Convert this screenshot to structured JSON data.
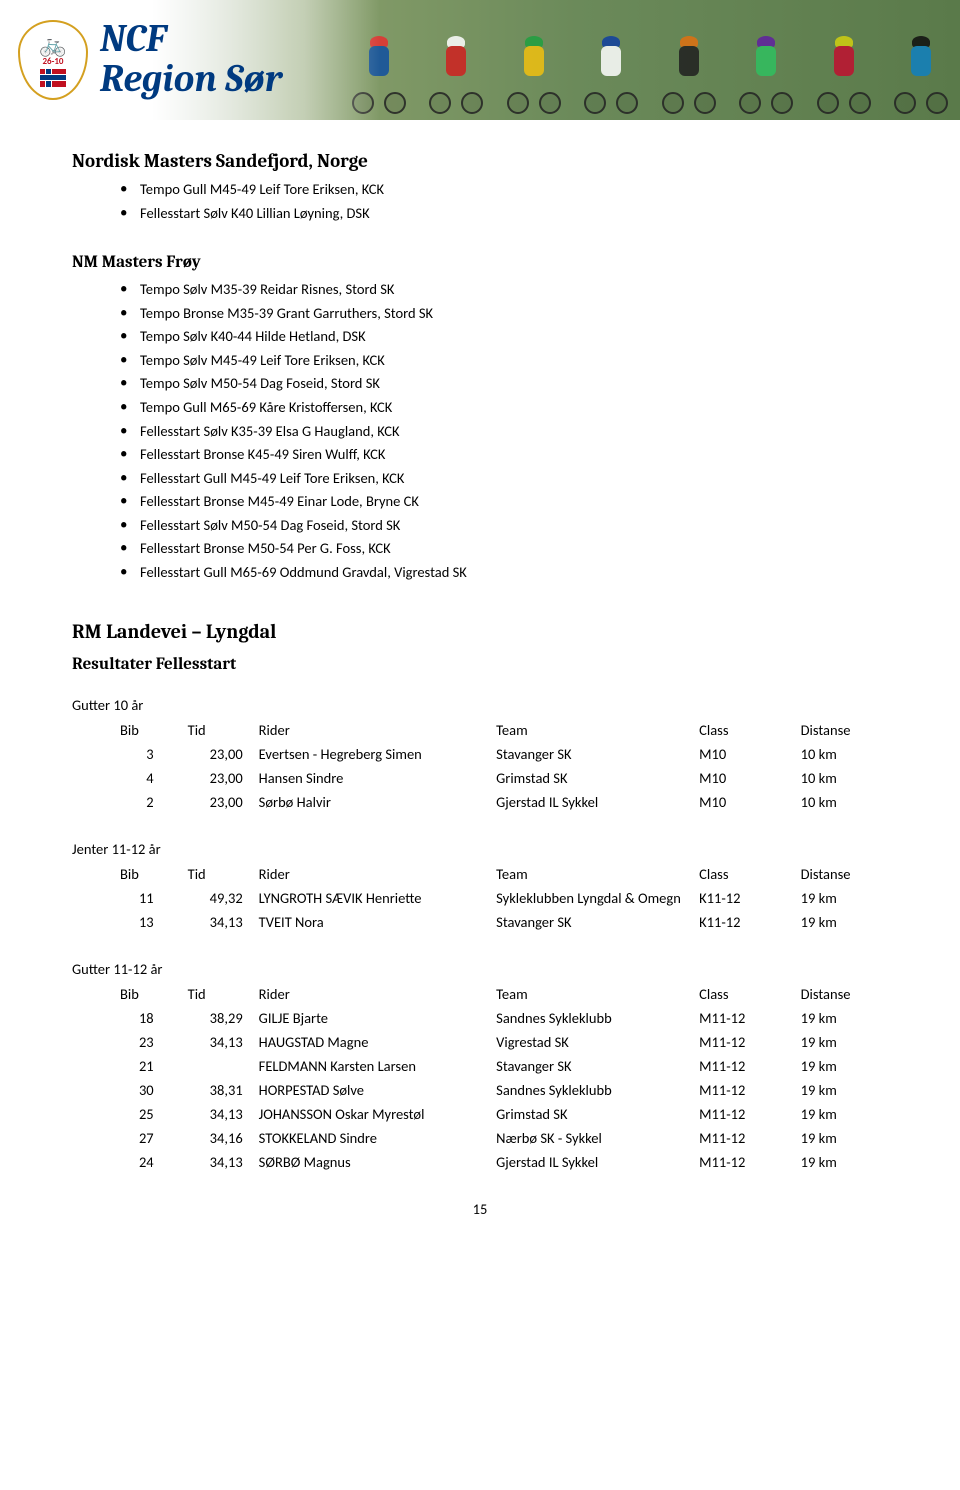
{
  "banner": {
    "title_line1": "NCF",
    "title_line2": "Region Sør",
    "logo_years": "26-10",
    "logo_ncf": "N.C.F.",
    "logo_year": "1910"
  },
  "section_nordisk": {
    "title": "Nordisk Masters Sandefjord, Norge",
    "items": [
      "Tempo Gull M45-49 Leif Tore Eriksen, KCK",
      "Fellesstart Sølv K40 Lillian Løyning, DSK"
    ]
  },
  "section_nm": {
    "title": "NM Masters Frøy",
    "items": [
      "Tempo Sølv M35-39 Reidar Risnes, Stord SK",
      "Tempo Bronse M35-39 Grant Garruthers, Stord SK",
      "Tempo Sølv K40-44 Hilde Hetland, DSK",
      "Tempo Sølv M45-49 Leif Tore Eriksen, KCK",
      "Tempo Sølv M50-54 Dag Foseid, Stord SK",
      "Tempo Gull M65-69 Kåre Kristoffersen, KCK",
      "Fellesstart Sølv K35-39 Elsa G Haugland, KCK",
      "Fellesstart Bronse K45-49 Siren Wulff, KCK",
      "Fellesstart Gull M45-49 Leif Tore Eriksen, KCK",
      "Fellesstart Bronse M45-49 Einar Lode, Bryne CK",
      "Fellesstart Sølv M50-54 Dag Foseid, Stord SK",
      "Fellesstart Bronse M50-54 Per G. Foss, KCK",
      "Fellesstart Gull M65-69 Oddmund Gravdal, Vigrestad SK"
    ]
  },
  "section_rm": {
    "title": "RM Landevei – Lyngdal",
    "subtitle": "Resultater Fellesstart"
  },
  "table_headers": {
    "bib": "Bib",
    "tid": "Tid",
    "rider": "Rider",
    "team": "Team",
    "class": "Class",
    "distanse": "Distanse"
  },
  "groups": [
    {
      "label": "Gutter 10 år",
      "rows": [
        {
          "bib": "3",
          "tid": "23,00",
          "rider": "Evertsen - Hegreberg Simen",
          "team": "Stavanger SK",
          "class": "M10",
          "dist": "10 km"
        },
        {
          "bib": "4",
          "tid": "23,00",
          "rider": "Hansen Sindre",
          "team": "Grimstad SK",
          "class": "M10",
          "dist": "10 km"
        },
        {
          "bib": "2",
          "tid": "23,00",
          "rider": "Sørbø Halvir",
          "team": "Gjerstad IL Sykkel",
          "class": "M10",
          "dist": "10 km"
        }
      ]
    },
    {
      "label": "Jenter 11-12 år",
      "rows": [
        {
          "bib": "11",
          "tid": "49,32",
          "rider": "LYNGROTH SÆVIK Henriette",
          "team": "Sykleklubben Lyngdal & Omegn",
          "class": "K11-12",
          "dist": "19 km"
        },
        {
          "bib": "13",
          "tid": "34,13",
          "rider": "TVEIT Nora",
          "team": "Stavanger SK",
          "class": "K11-12",
          "dist": "19 km"
        }
      ]
    },
    {
      "label": "Gutter 11-12 år",
      "rows": [
        {
          "bib": "18",
          "tid": "38,29",
          "rider": "GILJE Bjarte",
          "team": "Sandnes Sykleklubb",
          "class": "M11-12",
          "dist": "19 km"
        },
        {
          "bib": "23",
          "tid": "34,13",
          "rider": "HAUGSTAD Magne",
          "team": "Vigrestad SK",
          "class": "M11-12",
          "dist": "19 km"
        },
        {
          "bib": "21",
          "tid": "",
          "rider": "FELDMANN Karsten Larsen",
          "team": "Stavanger SK",
          "class": "M11-12",
          "dist": "19 km"
        },
        {
          "bib": "30",
          "tid": "38,31",
          "rider": "HORPESTAD Sølve",
          "team": "Sandnes Sykleklubb",
          "class": "M11-12",
          "dist": "19 km"
        },
        {
          "bib": "25",
          "tid": "34,13",
          "rider": "JOHANSSON Oskar Myrestøl",
          "team": "Grimstad SK",
          "class": "M11-12",
          "dist": "19 km"
        },
        {
          "bib": "27",
          "tid": "34,16",
          "rider": "STOKKELAND Sindre",
          "team": "Nærbø SK - Sykkel",
          "class": "M11-12",
          "dist": "19 km"
        },
        {
          "bib": "24",
          "tid": "34,13",
          "rider": "SØRBØ Magnus",
          "team": "Gjerstad IL Sykkel",
          "class": "M11-12",
          "dist": "19 km"
        }
      ]
    }
  ],
  "page_number": "15"
}
